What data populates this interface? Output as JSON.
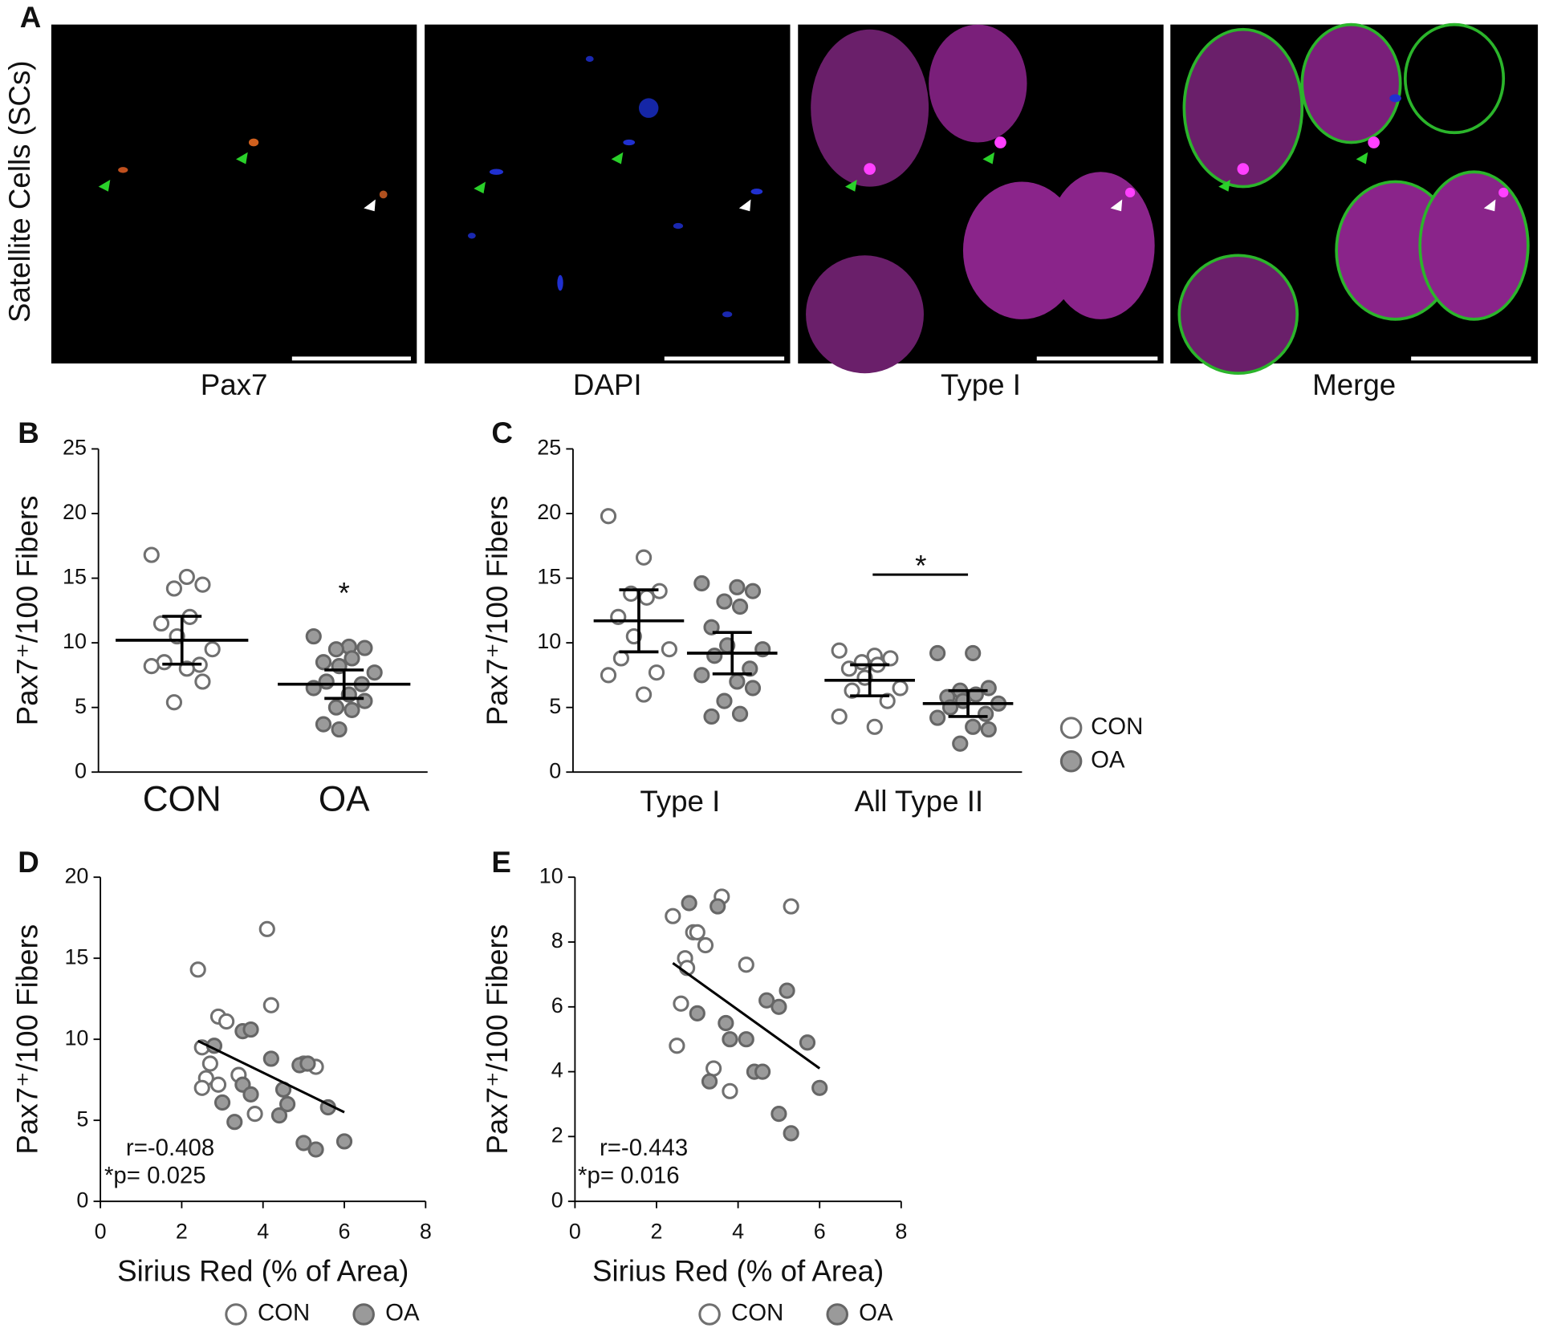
{
  "panel_a": {
    "panel": "A",
    "ylabel": "Satellite Cells (SCs)",
    "images": [
      "Pax7",
      "DAPI",
      "Type I",
      "Merge"
    ]
  },
  "chart_data": [
    {
      "type": "dot",
      "panel": "B",
      "ylabel": "Pax7⁺/100 Fibers",
      "categories": [
        "CON",
        "OA"
      ],
      "values": [
        [
          16.8,
          15.1,
          14.5,
          14.2,
          12.0,
          11.5,
          10.5,
          9.5,
          8.5,
          8.3,
          8.2,
          8.0,
          7.0,
          5.4
        ],
        [
          10.5,
          9.7,
          9.6,
          9.5,
          8.8,
          8.5,
          8.2,
          7.7,
          7.0,
          6.8,
          6.5,
          6.0,
          5.5,
          5.0,
          4.8,
          3.7,
          3.3
        ]
      ],
      "mean": [
        10.2,
        6.8
      ],
      "error": [
        1.85,
        1.1
      ],
      "colors": [
        "#ffffff",
        "#9a9a9a"
      ],
      "edgecolors": [
        "#707070",
        "#666666"
      ],
      "ylim": [
        0,
        25
      ],
      "yticks": [
        0,
        5,
        10,
        15,
        20,
        25
      ],
      "annotations": [
        "*"
      ]
    },
    {
      "type": "dot",
      "panel": "C",
      "ylabel": "Pax7⁺/100 Fibers",
      "categories": [
        "Type I",
        "All Type II"
      ],
      "series": [
        {
          "name": "CON",
          "color": "#ffffff",
          "edgecolor": "#707070",
          "values": [
            [
              19.8,
              16.6,
              14.0,
              13.8,
              13.5,
              12.0,
              10.5,
              9.5,
              8.8,
              7.7,
              7.5,
              6.0
            ],
            [
              9.4,
              9.0,
              8.8,
              8.5,
              8.3,
              8.0,
              7.3,
              6.5,
              6.3,
              5.5,
              4.3,
              3.5
            ]
          ],
          "mean": [
            11.7,
            7.1
          ],
          "error": [
            2.4,
            1.2
          ]
        },
        {
          "name": "OA",
          "color": "#9a9a9a",
          "edgecolor": "#666666",
          "values": [
            [
              14.6,
              14.3,
              14.0,
              13.2,
              12.8,
              11.2,
              9.8,
              9.5,
              9.0,
              8.0,
              7.5,
              7.0,
              6.5,
              5.5,
              4.5,
              4.3
            ],
            [
              9.2,
              9.2,
              6.5,
              6.3,
              6.0,
              5.8,
              5.5,
              5.3,
              5.0,
              4.5,
              4.2,
              3.5,
              3.3,
              2.2
            ]
          ],
          "mean": [
            9.2,
            5.3
          ],
          "error": [
            1.6,
            1.0
          ]
        }
      ],
      "ylim": [
        0,
        25
      ],
      "yticks": [
        0,
        5,
        10,
        15,
        20,
        25
      ],
      "annotations": [
        "*"
      ]
    },
    {
      "type": "scatter",
      "panel": "D",
      "ylabel": "Pax7⁺/100 Fibers",
      "xlabel": "Sirius Red (% of Area)",
      "series": [
        {
          "name": "CON",
          "color": "#ffffff",
          "edgecolor": "#707070",
          "x": [
            2.4,
            2.9,
            3.1,
            2.5,
            2.7,
            2.6,
            2.9,
            2.5,
            3.4,
            3.8,
            4.1,
            4.2,
            5.3,
            5.0
          ],
          "y": [
            14.3,
            11.4,
            11.1,
            9.5,
            8.5,
            7.6,
            7.2,
            7.0,
            7.8,
            5.4,
            16.8,
            12.1,
            8.3,
            8.5
          ]
        },
        {
          "name": "OA",
          "color": "#9a9a9a",
          "edgecolor": "#666666",
          "x": [
            2.8,
            3.5,
            3.7,
            4.2,
            3.5,
            3.7,
            3.0,
            3.3,
            4.4,
            4.6,
            4.5,
            4.9,
            5.1,
            5.6,
            5.0,
            5.3,
            6.0
          ],
          "y": [
            9.6,
            10.5,
            10.6,
            8.8,
            7.2,
            6.6,
            6.1,
            4.9,
            5.3,
            6.0,
            6.9,
            8.4,
            8.5,
            5.8,
            3.6,
            3.2,
            3.7
          ]
        }
      ],
      "trendline": {
        "x": [
          2.4,
          6.0
        ],
        "y": [
          9.9,
          5.5
        ]
      },
      "xlim": [
        0,
        8
      ],
      "xticks": [
        0,
        2,
        4,
        6,
        8
      ],
      "ylim": [
        0,
        20
      ],
      "yticks": [
        0,
        5,
        10,
        15,
        20
      ],
      "annotations": [
        "r=-0.408",
        "*p= 0.025"
      ]
    },
    {
      "type": "scatter",
      "panel": "E",
      "ylabel": "Pax7⁺/100 Fibers",
      "xlabel": "Sirius Red (% of Area)",
      "series": [
        {
          "name": "CON",
          "color": "#ffffff",
          "edgecolor": "#707070",
          "x": [
            2.4,
            2.7,
            2.75,
            2.9,
            3.0,
            3.2,
            3.6,
            2.6,
            2.5,
            3.4,
            3.8,
            4.2,
            5.3
          ],
          "y": [
            8.8,
            7.5,
            7.2,
            8.3,
            8.3,
            7.9,
            9.4,
            6.1,
            4.8,
            4.1,
            3.4,
            7.3,
            9.1
          ]
        },
        {
          "name": "OA",
          "color": "#9a9a9a",
          "edgecolor": "#666666",
          "x": [
            2.8,
            3.5,
            3.0,
            3.7,
            3.8,
            4.2,
            3.3,
            4.4,
            4.6,
            4.7,
            5.0,
            5.2,
            5.7,
            6.0,
            5.0,
            5.3
          ],
          "y": [
            9.2,
            9.1,
            5.8,
            5.5,
            5.0,
            5.0,
            3.7,
            4.0,
            4.0,
            6.2,
            6.0,
            6.5,
            4.9,
            3.5,
            2.7,
            2.1
          ]
        }
      ],
      "trendline": {
        "x": [
          2.4,
          6.0
        ],
        "y": [
          7.35,
          4.1
        ]
      },
      "xlim": [
        0,
        8
      ],
      "xticks": [
        0,
        2,
        4,
        6,
        8
      ],
      "ylim": [
        0,
        10
      ],
      "yticks": [
        0,
        2,
        4,
        6,
        8,
        10
      ],
      "annotations": [
        "r=-0.443",
        "*p= 0.016"
      ]
    }
  ]
}
